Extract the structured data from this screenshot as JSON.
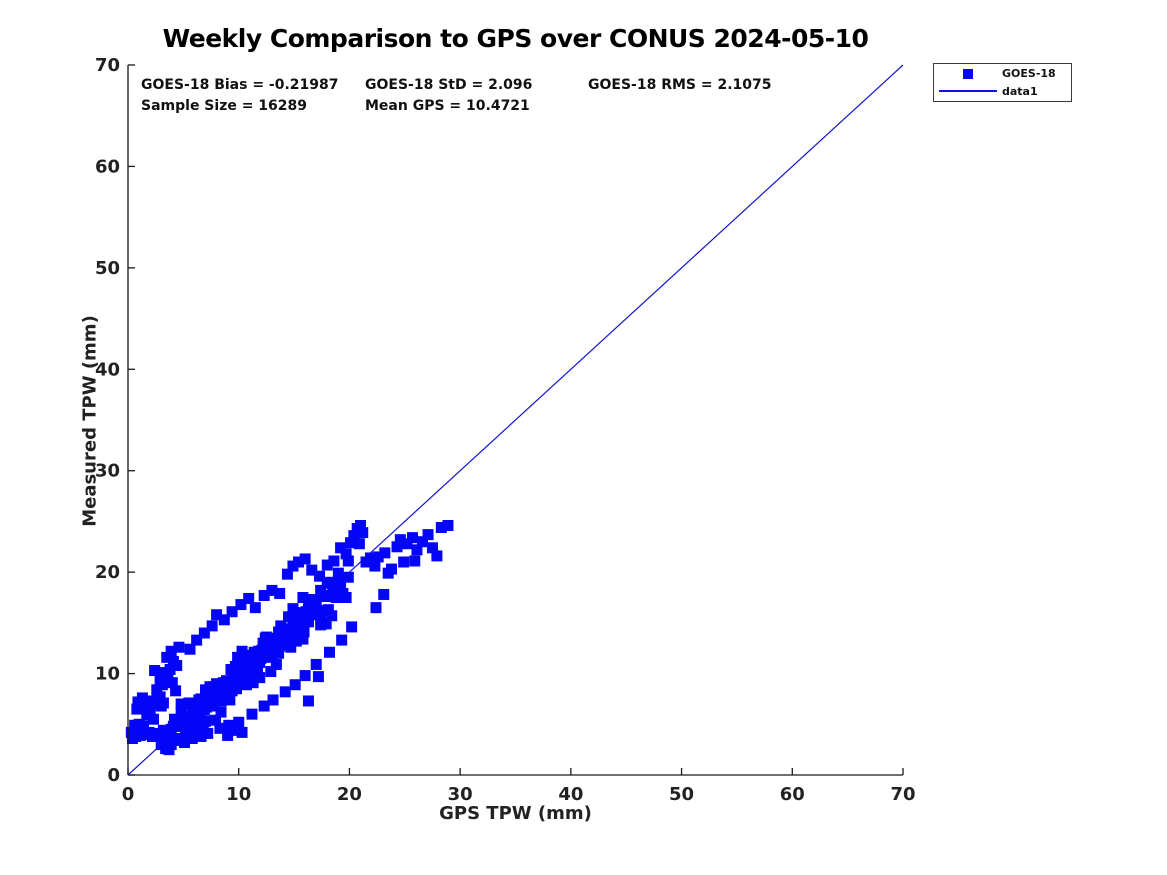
{
  "stats_text": {
    "bias": "GOES-18 Bias = -0.21987",
    "std": "GOES-18 StD = 2.096",
    "rms": "GOES-18 RMS = 2.1075",
    "sample": "Sample Size = 16289",
    "mean": "Mean GPS = 10.4721"
  },
  "colors": {
    "marker": "#0404f6",
    "line": "#1212d8",
    "axis": "#1a1a1a",
    "text": "#111111"
  },
  "chart_data": {
    "type": "scatter",
    "title": "Weekly Comparison to GPS over CONUS 2024-05-10",
    "xlabel": "GPS TPW (mm)",
    "ylabel": "Measured TPW (mm)",
    "xlim": [
      0,
      70
    ],
    "ylim": [
      0,
      70
    ],
    "xticks": [
      0,
      10,
      20,
      30,
      40,
      50,
      60,
      70
    ],
    "yticks": [
      0,
      10,
      20,
      30,
      40,
      50,
      60,
      70
    ],
    "grid": false,
    "legend_position": "upper-right-outside",
    "stats": {
      "goes18_bias": -0.21987,
      "goes18_std": 2.096,
      "goes18_rms": 2.1075,
      "sample_size": 16289,
      "mean_gps": 10.4721
    },
    "series": [
      {
        "name": "GOES-18",
        "type": "scatter",
        "marker": "filled-square",
        "color": "#0404f6",
        "points": [
          [
            0.3,
            4.2
          ],
          [
            0.4,
            3.6
          ],
          [
            0.5,
            4.1
          ],
          [
            0.7,
            3.8
          ],
          [
            0.9,
            4.4
          ],
          [
            1.1,
            3.9
          ],
          [
            1.3,
            4.3
          ],
          [
            1.6,
            4.0
          ],
          [
            1.9,
            4.2
          ],
          [
            2.2,
            3.8
          ],
          [
            1.0,
            5.0
          ],
          [
            1.4,
            4.8
          ],
          [
            0.6,
            4.9
          ],
          [
            2.5,
            4.1
          ],
          [
            2.8,
            3.9
          ],
          [
            0.8,
            6.5
          ],
          [
            1.1,
            6.9
          ],
          [
            1.5,
            7.1
          ],
          [
            1.8,
            6.7
          ],
          [
            2.1,
            7.3
          ],
          [
            2.4,
            7.0
          ],
          [
            2.7,
            7.4
          ],
          [
            3.0,
            6.8
          ],
          [
            1.3,
            7.6
          ],
          [
            0.9,
            7.2
          ],
          [
            2.0,
            6.3
          ],
          [
            2.9,
            7.7
          ],
          [
            3.2,
            7.1
          ],
          [
            1.7,
            5.9
          ],
          [
            2.3,
            5.5
          ],
          [
            2.6,
            8.4
          ],
          [
            3.1,
            8.9
          ],
          [
            3.6,
            9.6
          ],
          [
            2.9,
            9.3
          ],
          [
            3.3,
            10.1
          ],
          [
            3.8,
            10.4
          ],
          [
            2.4,
            10.3
          ],
          [
            4.1,
            11.2
          ],
          [
            3.5,
            11.6
          ],
          [
            4.4,
            10.8
          ],
          [
            4.0,
            9.1
          ],
          [
            4.3,
            8.3
          ],
          [
            3.9,
            12.2
          ],
          [
            4.6,
            12.6
          ],
          [
            3.0,
            3.0
          ],
          [
            3.5,
            4.4
          ],
          [
            3.9,
            3.0
          ],
          [
            4.4,
            4.8
          ],
          [
            4.8,
            6.2
          ],
          [
            5.3,
            4.7
          ],
          [
            5.7,
            5.8
          ],
          [
            6.2,
            4.6
          ],
          [
            6.6,
            7.5
          ],
          [
            7.1,
            6.7
          ],
          [
            7.5,
            7.2
          ],
          [
            8.0,
            8.7
          ],
          [
            8.4,
            7.3
          ],
          [
            8.9,
            9.1
          ],
          [
            9.3,
            10.4
          ],
          [
            9.8,
            9.0
          ],
          [
            10.2,
            10.1
          ],
          [
            10.7,
            8.9
          ],
          [
            11.1,
            11.8
          ],
          [
            11.6,
            11.0
          ],
          [
            12.0,
            11.5
          ],
          [
            12.5,
            12.9
          ],
          [
            12.9,
            11.6
          ],
          [
            13.4,
            13.4
          ],
          [
            13.8,
            14.7
          ],
          [
            14.3,
            13.2
          ],
          [
            14.7,
            14.4
          ],
          [
            15.2,
            13.2
          ],
          [
            15.6,
            16.0
          ],
          [
            16.1,
            15.3
          ],
          [
            16.5,
            15.8
          ],
          [
            17.0,
            17.2
          ],
          [
            17.4,
            15.8
          ],
          [
            17.9,
            17.7
          ],
          [
            18.3,
            19.0
          ],
          [
            18.8,
            17.5
          ],
          [
            19.2,
            18.6
          ],
          [
            19.7,
            17.5
          ],
          [
            3.2,
            4.4
          ],
          [
            3.7,
            3.4
          ],
          [
            4.1,
            4.8
          ],
          [
            4.6,
            3.4
          ],
          [
            5.0,
            5.3
          ],
          [
            5.5,
            7.1
          ],
          [
            5.9,
            5.1
          ],
          [
            6.4,
            6.6
          ],
          [
            6.8,
            4.9
          ],
          [
            7.3,
            7.9
          ],
          [
            7.7,
            8.7
          ],
          [
            8.2,
            7.6
          ],
          [
            8.6,
            9.1
          ],
          [
            9.1,
            7.7
          ],
          [
            9.5,
            9.5
          ],
          [
            10.0,
            11.4
          ],
          [
            10.4,
            9.4
          ],
          [
            10.9,
            10.9
          ],
          [
            11.3,
            9.1
          ],
          [
            11.8,
            12.2
          ],
          [
            12.2,
            13.0
          ],
          [
            12.7,
            11.9
          ],
          [
            13.1,
            13.4
          ],
          [
            13.6,
            12.0
          ],
          [
            14.0,
            13.8
          ],
          [
            14.5,
            15.6
          ],
          [
            14.9,
            13.7
          ],
          [
            15.4,
            15.2
          ],
          [
            15.8,
            13.4
          ],
          [
            16.3,
            16.4
          ],
          [
            16.7,
            17.3
          ],
          [
            17.2,
            16.2
          ],
          [
            17.6,
            17.6
          ],
          [
            18.1,
            16.3
          ],
          [
            18.5,
            18.1
          ],
          [
            19.0,
            19.9
          ],
          [
            19.4,
            17.9
          ],
          [
            19.9,
            19.5
          ],
          [
            3.4,
            2.6
          ],
          [
            3.9,
            4.5
          ],
          [
            4.4,
            3.6
          ],
          [
            4.9,
            6.9
          ],
          [
            5.4,
            5.3
          ],
          [
            5.9,
            4.6
          ],
          [
            6.4,
            7.4
          ],
          [
            6.9,
            6.4
          ],
          [
            7.4,
            8.7
          ],
          [
            7.9,
            5.4
          ],
          [
            8.4,
            6.2
          ],
          [
            8.9,
            9.3
          ],
          [
            9.4,
            8.3
          ],
          [
            9.9,
            11.6
          ],
          [
            10.4,
            10.1
          ],
          [
            10.9,
            9.4
          ],
          [
            11.4,
            12.1
          ],
          [
            11.9,
            11.1
          ],
          [
            12.4,
            13.5
          ],
          [
            12.9,
            10.2
          ],
          [
            13.4,
            10.9
          ],
          [
            13.9,
            14.0
          ],
          [
            14.4,
            13.1
          ],
          [
            14.9,
            16.4
          ],
          [
            15.4,
            14.8
          ],
          [
            15.9,
            14.1
          ],
          [
            16.4,
            16.9
          ],
          [
            16.9,
            15.9
          ],
          [
            17.4,
            18.2
          ],
          [
            17.9,
            14.9
          ],
          [
            18.4,
            15.7
          ],
          [
            18.9,
            18.8
          ],
          [
            19.4,
            17.8
          ],
          [
            19.9,
            21.1
          ],
          [
            3.1,
            3.4
          ],
          [
            3.7,
            2.5
          ],
          [
            4.2,
            5.5
          ],
          [
            4.8,
            7.0
          ],
          [
            5.3,
            4.6
          ],
          [
            5.9,
            6.5
          ],
          [
            6.4,
            4.4
          ],
          [
            7.0,
            8.4
          ],
          [
            7.5,
            7.1
          ],
          [
            8.1,
            8.9
          ],
          [
            8.6,
            8.7
          ],
          [
            9.2,
            7.4
          ],
          [
            9.7,
            10.7
          ],
          [
            10.3,
            12.2
          ],
          [
            10.8,
            9.9
          ],
          [
            11.4,
            11.7
          ],
          [
            11.9,
            9.6
          ],
          [
            12.5,
            13.6
          ],
          [
            13.0,
            12.4
          ],
          [
            13.6,
            14.1
          ],
          [
            14.1,
            13.9
          ],
          [
            14.7,
            12.6
          ],
          [
            15.2,
            15.9
          ],
          [
            15.8,
            17.5
          ],
          [
            16.3,
            15.1
          ],
          [
            16.9,
            16.9
          ],
          [
            17.4,
            14.8
          ],
          [
            18.0,
            18.9
          ],
          [
            18.5,
            17.6
          ],
          [
            19.1,
            19.3
          ],
          [
            4.5,
            5.0
          ],
          [
            4.9,
            4.8
          ],
          [
            5.3,
            5.4
          ],
          [
            5.7,
            5.1
          ],
          [
            6.1,
            6.8
          ],
          [
            6.5,
            6.1
          ],
          [
            6.9,
            7.2
          ],
          [
            7.3,
            7.2
          ],
          [
            7.7,
            6.8
          ],
          [
            8.1,
            8.5
          ],
          [
            8.5,
            8.8
          ],
          [
            8.9,
            8.6
          ],
          [
            9.3,
            9.2
          ],
          [
            9.7,
            8.9
          ],
          [
            10.1,
            10.6
          ],
          [
            10.5,
            9.9
          ],
          [
            10.9,
            11.0
          ],
          [
            11.3,
            11.0
          ],
          [
            11.7,
            10.6
          ],
          [
            12.1,
            12.3
          ],
          [
            12.5,
            12.6
          ],
          [
            12.9,
            12.4
          ],
          [
            13.3,
            13.0
          ],
          [
            13.7,
            12.7
          ],
          [
            14.1,
            14.4
          ],
          [
            14.5,
            13.7
          ],
          [
            14.9,
            14.8
          ],
          [
            15.3,
            14.8
          ],
          [
            15.7,
            14.4
          ],
          [
            16.1,
            16.1
          ],
          [
            16.5,
            16.4
          ],
          [
            5.2,
            4.1
          ],
          [
            5.7,
            7.0
          ],
          [
            6.1,
            5.6
          ],
          [
            6.6,
            7.4
          ],
          [
            7.0,
            5.3
          ],
          [
            7.5,
            7.6
          ],
          [
            8.0,
            9.0
          ],
          [
            8.4,
            7.4
          ],
          [
            8.9,
            9.1
          ],
          [
            9.3,
            9.0
          ],
          [
            9.8,
            8.5
          ],
          [
            10.3,
            11.4
          ],
          [
            10.7,
            10.0
          ],
          [
            11.2,
            11.7
          ],
          [
            11.6,
            9.7
          ],
          [
            12.1,
            12.0
          ],
          [
            12.6,
            13.3
          ],
          [
            13.0,
            11.8
          ],
          [
            13.5,
            13.5
          ],
          [
            13.9,
            13.3
          ],
          [
            14.4,
            12.9
          ],
          [
            14.9,
            15.7
          ],
          [
            15.3,
            14.4
          ],
          [
            15.7,
            16.0
          ],
          [
            8.0,
            15.8
          ],
          [
            8.7,
            15.3
          ],
          [
            9.4,
            16.1
          ],
          [
            10.2,
            16.8
          ],
          [
            10.9,
            17.4
          ],
          [
            11.5,
            16.5
          ],
          [
            12.3,
            17.7
          ],
          [
            13.0,
            18.2
          ],
          [
            13.7,
            17.9
          ],
          [
            14.4,
            19.8
          ],
          [
            14.9,
            20.6
          ],
          [
            15.4,
            21.0
          ],
          [
            16.0,
            21.3
          ],
          [
            16.6,
            20.2
          ],
          [
            17.3,
            19.6
          ],
          [
            18.0,
            20.7
          ],
          [
            18.6,
            21.1
          ],
          [
            19.2,
            22.4
          ],
          [
            19.7,
            21.8
          ],
          [
            20.1,
            22.9
          ],
          [
            20.4,
            23.6
          ],
          [
            20.7,
            24.3
          ],
          [
            21.0,
            24.6
          ],
          [
            21.2,
            23.9
          ],
          [
            20.9,
            22.8
          ],
          [
            21.5,
            21.0
          ],
          [
            21.9,
            21.4
          ],
          [
            22.3,
            20.6
          ],
          [
            5.6,
            12.4
          ],
          [
            6.2,
            13.3
          ],
          [
            6.9,
            14.0
          ],
          [
            7.6,
            14.7
          ],
          [
            22.6,
            21.5
          ],
          [
            23.2,
            21.9
          ],
          [
            23.8,
            20.3
          ],
          [
            24.3,
            22.5
          ],
          [
            24.9,
            21.0
          ],
          [
            25.2,
            22.8
          ],
          [
            25.7,
            23.4
          ],
          [
            26.1,
            22.2
          ],
          [
            26.6,
            23.0
          ],
          [
            27.1,
            23.7
          ],
          [
            27.5,
            22.4
          ],
          [
            27.9,
            21.6
          ],
          [
            28.3,
            24.4
          ],
          [
            28.9,
            24.6
          ],
          [
            24.6,
            23.2
          ],
          [
            25.9,
            21.1
          ],
          [
            23.5,
            19.9
          ],
          [
            22.4,
            16.5
          ],
          [
            23.1,
            17.8
          ],
          [
            16.3,
            7.3
          ],
          [
            17.2,
            9.7
          ],
          [
            9.0,
            3.9
          ],
          [
            9.6,
            4.4
          ],
          [
            10.3,
            4.2
          ],
          [
            5.1,
            3.2
          ],
          [
            5.8,
            3.6
          ],
          [
            6.6,
            3.8
          ],
          [
            7.2,
            4.1
          ],
          [
            8.3,
            4.6
          ],
          [
            9.1,
            4.9
          ],
          [
            10.0,
            5.2
          ],
          [
            11.2,
            6.0
          ],
          [
            12.3,
            6.8
          ],
          [
            13.1,
            7.4
          ],
          [
            14.2,
            8.2
          ],
          [
            15.1,
            8.9
          ],
          [
            16.0,
            9.8
          ],
          [
            17.0,
            10.9
          ],
          [
            18.2,
            12.1
          ],
          [
            19.3,
            13.3
          ],
          [
            20.2,
            14.6
          ]
        ]
      },
      {
        "name": "data1",
        "type": "line",
        "color": "#1212d8",
        "points": [
          [
            0,
            0
          ],
          [
            70,
            70
          ]
        ]
      }
    ]
  }
}
